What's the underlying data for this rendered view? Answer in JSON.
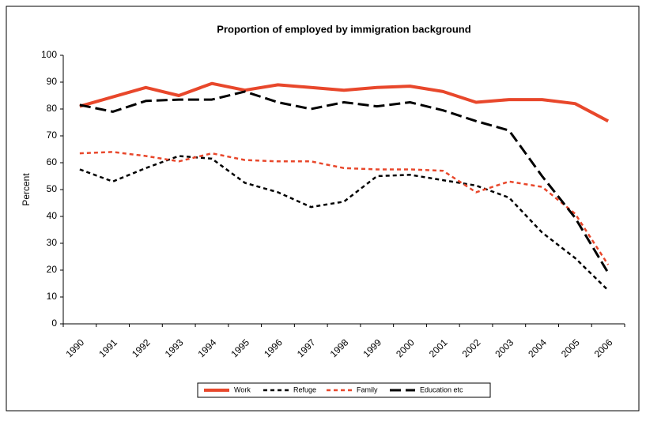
{
  "chart_data": {
    "type": "line",
    "title": "Proportion of employed by immigration background",
    "y_label": "Percent",
    "categories": [
      "1990",
      "1991",
      "1992",
      "1993",
      "1994",
      "1995",
      "1996",
      "1997",
      "1998",
      "1999",
      "2000",
      "2001",
      "2002",
      "2003",
      "2004",
      "2005",
      "2006"
    ],
    "series": [
      {
        "name": "Work",
        "color": "#e8472b",
        "line_style": "solid",
        "values": [
          81,
          84.5,
          88,
          85,
          89.5,
          87,
          89,
          88,
          87,
          88,
          88.5,
          86.5,
          82.5,
          83.5,
          83.5,
          82,
          75.5
        ]
      },
      {
        "name": "Refuge",
        "color": "#000000",
        "line_style": "short-dash",
        "values": [
          57.5,
          53,
          58,
          62.5,
          61.5,
          52.5,
          49,
          43.5,
          45.5,
          55,
          55.5,
          53.5,
          51.5,
          47,
          34,
          24.5,
          12.5
        ]
      },
      {
        "name": "Family",
        "color": "#e8472b",
        "line_style": "short-dash",
        "values": [
          63.5,
          64,
          62.5,
          60.5,
          63.5,
          61,
          60.5,
          60.5,
          58,
          57.5,
          57.5,
          57,
          49,
          53,
          51,
          41,
          22
        ]
      },
      {
        "name": "Education etc",
        "color": "#000000",
        "line_style": "long-dash",
        "values": [
          81.5,
          79,
          83,
          83.5,
          83.5,
          86.5,
          82.5,
          80,
          82.5,
          81,
          82.5,
          79.5,
          75.5,
          72,
          55,
          39.5,
          19
        ]
      }
    ],
    "ylim": [
      0,
      100
    ],
    "yticks": [
      0,
      10,
      20,
      30,
      40,
      50,
      60,
      70,
      80,
      90,
      100
    ],
    "grid": false,
    "legend_position": "bottom"
  }
}
